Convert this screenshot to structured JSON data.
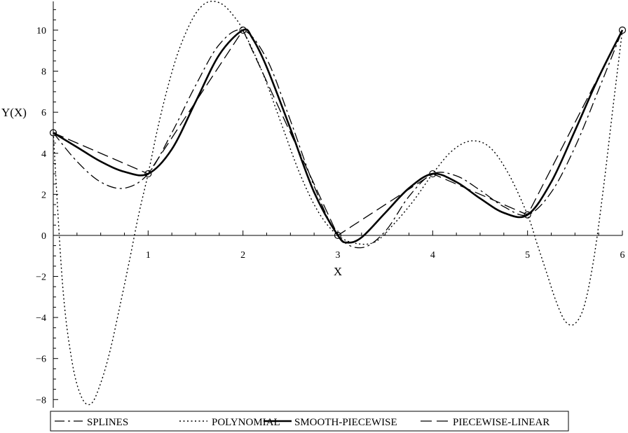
{
  "chart_data": {
    "type": "line",
    "xlabel": "X",
    "ylabel": "Y(X)",
    "xlim": [
      0,
      6
    ],
    "ylim": [
      -8.4,
      11.4
    ],
    "x_ticks": [
      1,
      2,
      3,
      4,
      5,
      6
    ],
    "y_ticks": [
      -8,
      -6,
      -4,
      -2,
      0,
      2,
      4,
      6,
      8,
      10
    ],
    "grid": false,
    "legend_position": "bottom",
    "data_points": {
      "x": [
        0,
        1,
        2,
        3,
        4,
        5,
        6
      ],
      "y": [
        5,
        3,
        10,
        0,
        3,
        1,
        10
      ],
      "marker": "open-circle"
    },
    "series": [
      {
        "name": "SPLINES",
        "style": "dash-dot",
        "x": [
          0,
          0.25,
          0.5,
          0.75,
          1,
          1.25,
          1.5,
          1.75,
          2,
          2.25,
          2.5,
          2.75,
          3,
          3.25,
          3.5,
          3.75,
          4,
          4.25,
          4.5,
          4.75,
          5,
          5.25,
          5.5,
          5.75,
          6
        ],
        "y": [
          5,
          3.6,
          2.6,
          2.3,
          3,
          5,
          7.3,
          9.3,
          10,
          8.6,
          5.6,
          2.4,
          0,
          -0.6,
          0.2,
          1.9,
          3,
          2.9,
          2.2,
          1.4,
          1,
          2.1,
          4.3,
          7.1,
          10
        ]
      },
      {
        "name": "POLYNOMIAL",
        "style": "dotted",
        "x": [
          0,
          0.1,
          0.2,
          0.3,
          0.4,
          0.5,
          0.6,
          0.7,
          0.8,
          0.9,
          1,
          1.1,
          1.2,
          1.3,
          1.4,
          1.5,
          1.6,
          1.7,
          1.8,
          1.9,
          2,
          2.2,
          2.4,
          2.6,
          2.8,
          3,
          3.2,
          3.4,
          3.6,
          3.8,
          4,
          4.2,
          4.4,
          4.6,
          4.8,
          5,
          5.1,
          5.2,
          5.3,
          5.4,
          5.5,
          5.6,
          5.7,
          5.8,
          5.9,
          6
        ],
        "y": [
          5,
          -2.5,
          -6.2,
          -7.9,
          -8.2,
          -7.2,
          -5.6,
          -3.5,
          -1.3,
          1.0,
          3.0,
          5.2,
          7.1,
          8.7,
          9.9,
          10.8,
          11.3,
          11.4,
          11.2,
          10.7,
          10.0,
          8.0,
          5.5,
          3.0,
          1.1,
          0,
          -0.4,
          -0.3,
          0.6,
          1.7,
          3.0,
          4.1,
          4.6,
          4.3,
          3.0,
          1.0,
          -0.4,
          -1.8,
          -3.2,
          -4.2,
          -4.3,
          -3.4,
          -1.1,
          2.3,
          6.2,
          10.0
        ]
      },
      {
        "name": "SMOOTH-PIECEWISE",
        "style": "solid-bold",
        "x": [
          0,
          0.25,
          0.5,
          0.75,
          1,
          1.25,
          1.5,
          1.75,
          2,
          2.1,
          2.25,
          2.5,
          2.75,
          3,
          3.1,
          3.25,
          3.5,
          3.75,
          4,
          4.25,
          4.5,
          4.75,
          5,
          5.25,
          5.5,
          5.75,
          6
        ],
        "y": [
          5,
          4.3,
          3.6,
          3.1,
          3,
          4.2,
          6.5,
          8.8,
          10,
          9.6,
          8.2,
          5.2,
          2.1,
          0,
          -0.35,
          -0.1,
          1.1,
          2.3,
          3,
          2.6,
          1.8,
          1.1,
          1,
          2.6,
          5.1,
          7.7,
          10
        ]
      },
      {
        "name": "PIECEWISE-LINEAR",
        "style": "dashed",
        "x": [
          0,
          1,
          2,
          3,
          4,
          5,
          6
        ],
        "y": [
          5,
          3,
          10,
          0,
          3,
          1,
          10
        ]
      }
    ]
  }
}
